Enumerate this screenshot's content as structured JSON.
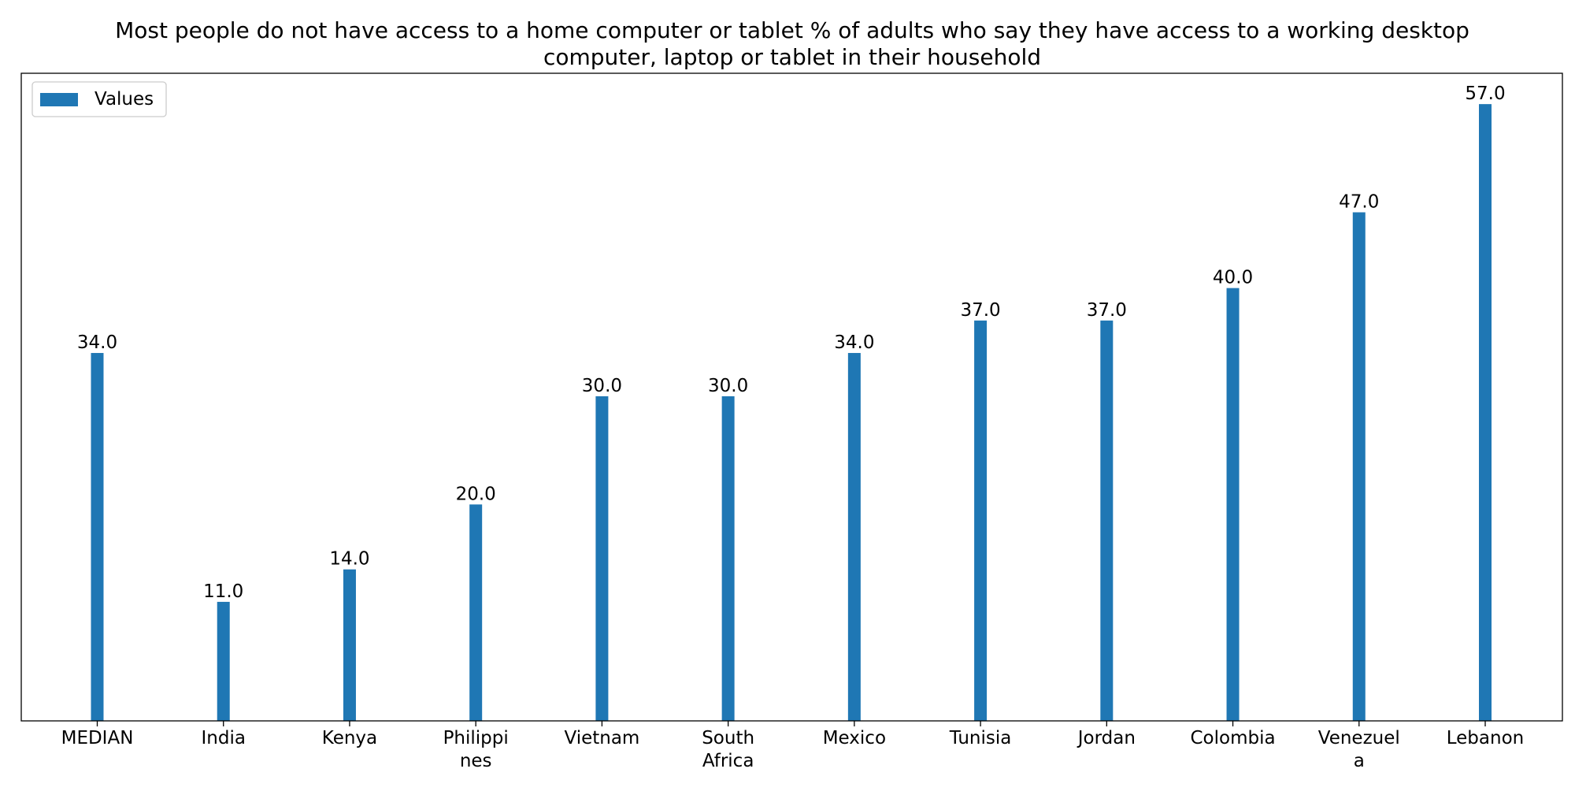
{
  "chart_data": {
    "type": "bar",
    "title": "Most people do not have access to a home computer or tablet % of adults who say they have access to a working desktop computer, laptop or tablet in their household",
    "title_lines": [
      "Most people do not have access to a home computer or tablet % of adults who say they have access to a working desktop",
      "computer, laptop or tablet in their household"
    ],
    "xlabel": "",
    "ylabel": "",
    "categories": [
      "MEDIAN",
      "India",
      "Kenya",
      "Philippines",
      "Vietnam",
      "South Africa",
      "Mexico",
      "Tunisia",
      "Jordan",
      "Colombia",
      "Venezuela",
      "Lebanon"
    ],
    "category_label_lines": [
      [
        "MEDIAN"
      ],
      [
        "India"
      ],
      [
        "Kenya"
      ],
      [
        "Philippi",
        "nes"
      ],
      [
        "Vietnam"
      ],
      [
        "South",
        "Africa"
      ],
      [
        "Mexico"
      ],
      [
        "Tunisia"
      ],
      [
        "Jordan"
      ],
      [
        "Colombia"
      ],
      [
        "Venezuel",
        "a"
      ],
      [
        "Lebanon"
      ]
    ],
    "series": [
      {
        "name": "Values",
        "values": [
          34,
          11,
          14,
          20,
          30,
          30,
          34,
          37,
          37,
          40,
          47,
          57
        ],
        "value_labels": [
          "34.0",
          "11.0",
          "14.0",
          "20.0",
          "30.0",
          "30.0",
          "34.0",
          "37.0",
          "37.0",
          "40.0",
          "47.0",
          "57.0"
        ],
        "color": "#1f77b4"
      }
    ],
    "ylim": [
      0,
      59.85
    ],
    "y_axis_visible": false,
    "grid": false,
    "legend": {
      "position": "top-left",
      "entries": [
        "Values"
      ]
    }
  }
}
